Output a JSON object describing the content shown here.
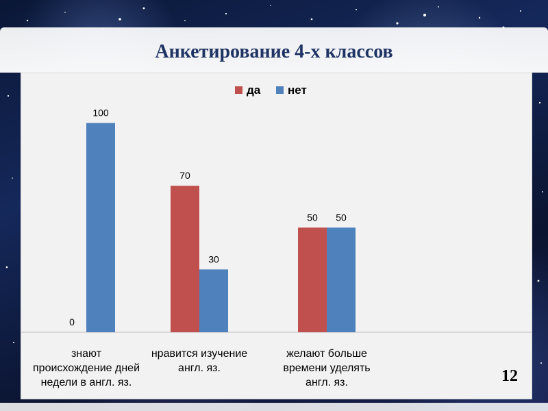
{
  "slide": {
    "title": "Анкетирование 4-х классов",
    "page_number": "12"
  },
  "chart_data": {
    "type": "bar",
    "categories": [
      [
        "знают",
        "происхождение дней",
        "недели в англ. яз."
      ],
      [
        "нравится изучение",
        "англ. яз."
      ],
      [
        "желают больше",
        "времени уделять",
        "англ. яз."
      ]
    ],
    "series": [
      {
        "name": "да",
        "color": "#c0504d",
        "values": [
          0,
          70,
          50
        ]
      },
      {
        "name": "нет",
        "color": "#4f81bd",
        "values": [
          100,
          30,
          50
        ]
      }
    ],
    "ylim": [
      0,
      110
    ],
    "grid": false,
    "legend": "top-center",
    "data_labels": true
  }
}
